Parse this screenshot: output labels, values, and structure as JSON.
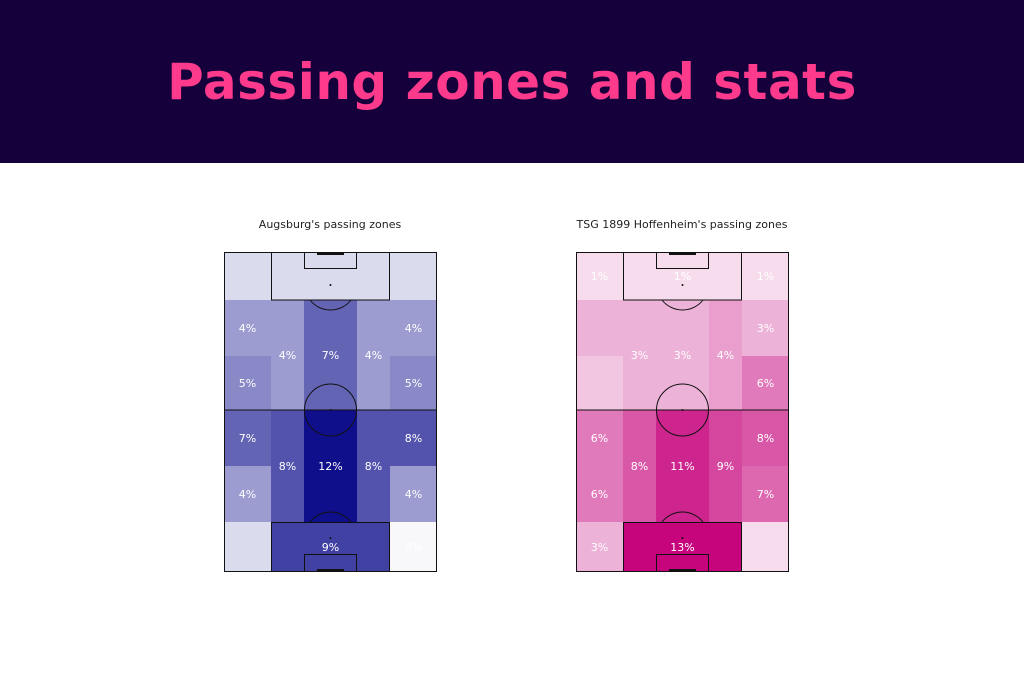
{
  "header": {
    "title": "Passing zones and stats"
  },
  "chart_data": [
    {
      "type": "heatmap",
      "title": "Augsburg's passing zones",
      "color": "#0a0a8a",
      "zones": [
        {
          "zone": "top-left",
          "value": 1,
          "label": ""
        },
        {
          "zone": "top-center",
          "value": 1,
          "label": ""
        },
        {
          "zone": "top-right",
          "value": 1,
          "label": ""
        },
        {
          "zone": "upper-wide-left",
          "value": 4,
          "label": "4%"
        },
        {
          "zone": "upper-half-left",
          "value": 4,
          "label": "4%"
        },
        {
          "zone": "upper-center",
          "value": 7,
          "label": "7%"
        },
        {
          "zone": "upper-half-right",
          "value": 4,
          "label": "4%"
        },
        {
          "zone": "upper-wide-right",
          "value": 4,
          "label": "4%"
        },
        {
          "zone": "midupper-wide-left",
          "value": 5,
          "label": "5%"
        },
        {
          "zone": "midupper-wide-right",
          "value": 5,
          "label": "5%"
        },
        {
          "zone": "midlower-wide-left",
          "value": 7,
          "label": "7%"
        },
        {
          "zone": "lower-half-left",
          "value": 8,
          "label": "8%"
        },
        {
          "zone": "lower-center",
          "value": 12,
          "label": "12%"
        },
        {
          "zone": "lower-half-right",
          "value": 8,
          "label": "8%"
        },
        {
          "zone": "midlower-wide-right",
          "value": 8,
          "label": "8%"
        },
        {
          "zone": "lower-wide-left",
          "value": 4,
          "label": "4%"
        },
        {
          "zone": "lower-wide-right",
          "value": 4,
          "label": "4%"
        },
        {
          "zone": "bottom-left",
          "value": 1,
          "label": ""
        },
        {
          "zone": "bottom-center",
          "value": 9,
          "label": "9%"
        },
        {
          "zone": "bottom-right",
          "value": 0,
          "label": "0%"
        }
      ]
    },
    {
      "type": "heatmap",
      "title": "TSG 1899 Hoffenheim's passing zones",
      "color": "#c5007a",
      "zones": [
        {
          "zone": "top-left",
          "value": 1,
          "label": "1%"
        },
        {
          "zone": "top-center",
          "value": 1,
          "label": "1%"
        },
        {
          "zone": "top-right",
          "value": 1,
          "label": "1%"
        },
        {
          "zone": "upper-wide-left",
          "value": 3,
          "label": ""
        },
        {
          "zone": "upper-half-left",
          "value": 3,
          "label": "3%"
        },
        {
          "zone": "upper-center",
          "value": 3,
          "label": "3%"
        },
        {
          "zone": "upper-half-right",
          "value": 4,
          "label": "4%"
        },
        {
          "zone": "upper-wide-right",
          "value": 3,
          "label": "3%"
        },
        {
          "zone": "midupper-wide-left",
          "value": 2,
          "label": ""
        },
        {
          "zone": "midupper-wide-right",
          "value": 6,
          "label": "6%"
        },
        {
          "zone": "midlower-wide-left",
          "value": 6,
          "label": "6%"
        },
        {
          "zone": "lower-half-left",
          "value": 8,
          "label": "8%"
        },
        {
          "zone": "lower-center",
          "value": 11,
          "label": "11%"
        },
        {
          "zone": "lower-half-right",
          "value": 9,
          "label": "9%"
        },
        {
          "zone": "midlower-wide-right",
          "value": 8,
          "label": "8%"
        },
        {
          "zone": "lower-wide-left",
          "value": 6,
          "label": "6%"
        },
        {
          "zone": "lower-wide-right",
          "value": 7,
          "label": "7%"
        },
        {
          "zone": "bottom-left",
          "value": 3,
          "label": "3%"
        },
        {
          "zone": "bottom-center",
          "value": 13,
          "label": "13%"
        },
        {
          "zone": "bottom-right",
          "value": 1,
          "label": ""
        }
      ]
    }
  ]
}
